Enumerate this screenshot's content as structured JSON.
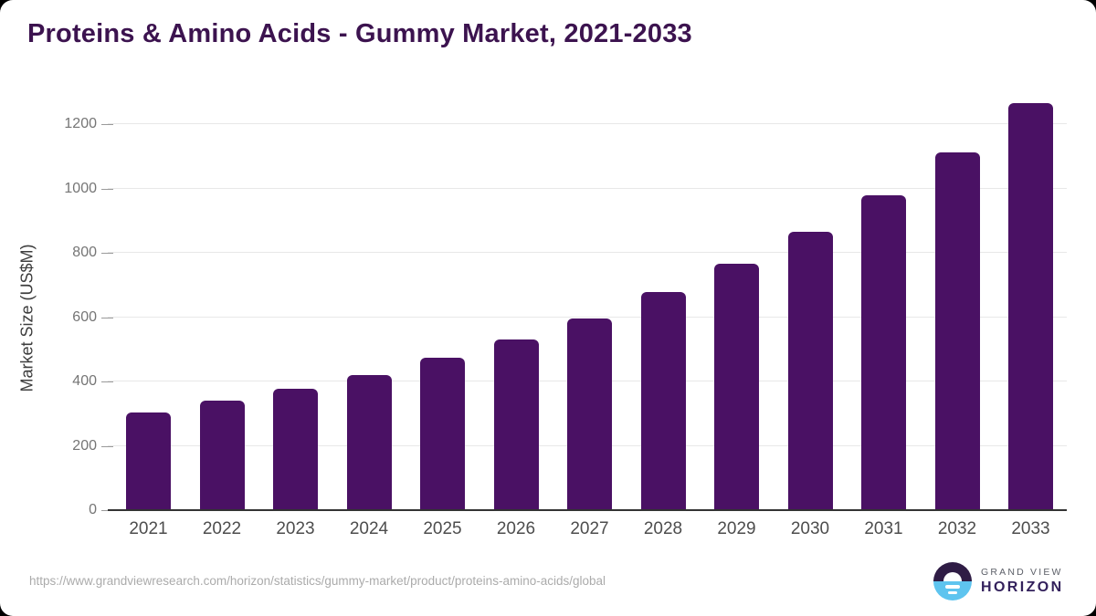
{
  "title": "Proteins & Amino Acids - Gummy Market, 2021-2033",
  "chart_data": {
    "type": "bar",
    "title": "Proteins & Amino Acids - Gummy Market, 2021-2033",
    "categories": [
      "2021",
      "2022",
      "2023",
      "2024",
      "2025",
      "2026",
      "2027",
      "2028",
      "2029",
      "2030",
      "2031",
      "2032",
      "2033"
    ],
    "values": [
      305,
      340,
      378,
      421,
      473,
      531,
      597,
      679,
      766,
      865,
      980,
      1111,
      1266
    ],
    "xlabel": "",
    "ylabel": "Market Size (US$M)",
    "ylim": [
      0,
      1282
    ],
    "yticks": [
      0,
      200,
      400,
      600,
      800,
      1000,
      1200
    ],
    "grid": true,
    "legend_position": "none",
    "bar_color": "#4a1164"
  },
  "footer": {
    "source_url": "https://www.grandviewresearch.com/horizon/statistics/gummy-market/product/proteins-amino-acids/global",
    "logo_line1": "GRAND VIEW",
    "logo_line2": "HORIZON"
  },
  "colors": {
    "title": "#3c134f",
    "bar": "#4a1164",
    "gridline": "#e8e8e8",
    "axis_line": "#333333",
    "y_tick_label": "#757575",
    "x_tick_label": "#4d4d4d",
    "y_axis_title": "#3d3d3d",
    "source_url": "#ababab",
    "logo_dark": "#2f1c45",
    "logo_blue": "#5ec4ef",
    "background": "#ffffff"
  }
}
